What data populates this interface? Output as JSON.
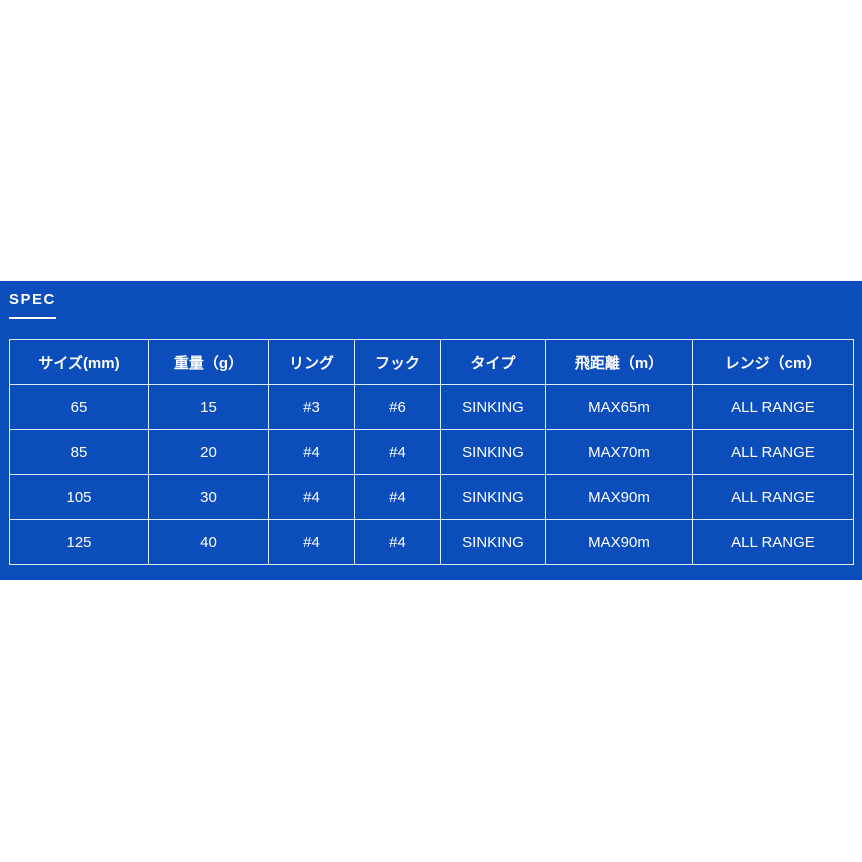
{
  "spec": {
    "title": "SPEC",
    "headers": [
      "サイズ(mm)",
      "重量（g）",
      "リング",
      "フック",
      "タイプ",
      "飛距離（m）",
      "レンジ（cm）"
    ],
    "rows": [
      [
        "65",
        "15",
        "#3",
        "#6",
        "SINKING",
        "MAX65m",
        "ALL RANGE"
      ],
      [
        "85",
        "20",
        "#4",
        "#4",
        "SINKING",
        "MAX70m",
        "ALL RANGE"
      ],
      [
        "105",
        "30",
        "#4",
        "#4",
        "SINKING",
        "MAX90m",
        "ALL RANGE"
      ],
      [
        "125",
        "40",
        "#4",
        "#4",
        "SINKING",
        "MAX90m",
        "ALL RANGE"
      ]
    ]
  },
  "colors": {
    "panel": "#0a4dbb",
    "text": "#ffffff",
    "border": "#d8f0ff"
  }
}
